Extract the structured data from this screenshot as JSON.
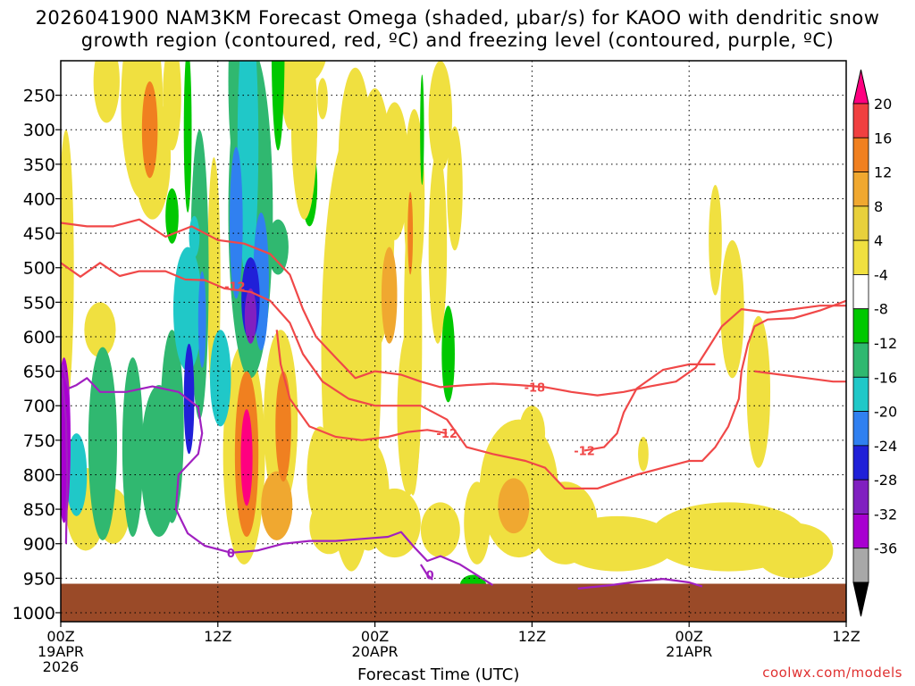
{
  "chart_data": {
    "type": "heatmap",
    "title_line1": "2026041900 NAM3KM Forecast Omega (shaded, μbar/s) for KAOO with dendritic snow",
    "title_line2": "growth region (contoured, red, ºC) and freezing level (contoured, purple, ºC)",
    "xlabel": "Forecast Time (UTC)",
    "credit": "coolwx.com/models",
    "x_ticks": [
      {
        "hour": 0,
        "lines": [
          "00Z",
          "19APR",
          "2026"
        ]
      },
      {
        "hour": 12,
        "lines": [
          "12Z"
        ]
      },
      {
        "hour": 24,
        "lines": [
          "00Z",
          "20APR"
        ]
      },
      {
        "hour": 36,
        "lines": [
          "12Z"
        ]
      },
      {
        "hour": 48,
        "lines": [
          "00Z",
          "21APR"
        ]
      },
      {
        "hour": 60,
        "lines": [
          "12Z"
        ]
      }
    ],
    "xlim_hours": [
      0,
      60
    ],
    "y_ticks": [
      250,
      300,
      350,
      400,
      450,
      500,
      550,
      600,
      650,
      700,
      750,
      800,
      850,
      900,
      950,
      1000
    ],
    "ylim_hpa": [
      200,
      1013
    ],
    "surface_pressure_hpa": 958,
    "surface_color": "#9a4a28",
    "colorbar": {
      "labels": [
        "20",
        "16",
        "12",
        "8",
        "4",
        "-4",
        "-8",
        "-12",
        "-16",
        "-20",
        "-24",
        "-28",
        "-32",
        "-36"
      ],
      "colors": [
        "#ff0080",
        "#f04040",
        "#f08020",
        "#f0a830",
        "#e8d03c",
        "#f0e040",
        "#ffffff",
        "#00c800",
        "#30b870",
        "#20c8c8",
        "#3080f0",
        "#2020d8",
        "#8020c0",
        "#a800d0",
        "#a8a8a8",
        "#000000"
      ]
    },
    "omega_blobs": [
      {
        "h": 0.4,
        "p": 500,
        "rx": 0.6,
        "ry": 200,
        "v": 6
      },
      {
        "h": 0.25,
        "p": 750,
        "rx": 0.5,
        "ry": 120,
        "v": -30
      },
      {
        "h": 1.2,
        "p": 800,
        "rx": 0.8,
        "ry": 60,
        "v": -12
      },
      {
        "h": 3.5,
        "p": 230,
        "rx": 1.0,
        "ry": 60,
        "v": 6
      },
      {
        "h": 6.2,
        "p": 260,
        "rx": 1.6,
        "ry": 140,
        "v": 6
      },
      {
        "h": 6.8,
        "p": 300,
        "rx": 0.6,
        "ry": 70,
        "v": 12
      },
      {
        "h": 7.0,
        "p": 340,
        "rx": 1.4,
        "ry": 90,
        "v": 6
      },
      {
        "h": 8.5,
        "p": 250,
        "rx": 0.7,
        "ry": 80,
        "v": 6
      },
      {
        "h": 8.5,
        "p": 425,
        "rx": 0.5,
        "ry": 40,
        "v": -6
      },
      {
        "h": 9.7,
        "p": 300,
        "rx": 0.3,
        "ry": 120,
        "v": -6
      },
      {
        "h": 10.2,
        "p": 455,
        "rx": 0.4,
        "ry": 30,
        "v": -14
      },
      {
        "h": 10.6,
        "p": 510,
        "rx": 0.7,
        "ry": 210,
        "v": -10
      },
      {
        "h": 10.8,
        "p": 575,
        "rx": 0.3,
        "ry": 70,
        "v": -18
      },
      {
        "h": 9.7,
        "p": 560,
        "rx": 1.1,
        "ry": 90,
        "v": -12
      },
      {
        "h": 9.8,
        "p": 690,
        "rx": 0.4,
        "ry": 80,
        "v": -22
      },
      {
        "h": 8.5,
        "p": 730,
        "rx": 0.9,
        "ry": 140,
        "v": -10
      },
      {
        "h": 7.5,
        "p": 780,
        "rx": 1.4,
        "ry": 110,
        "v": -8
      },
      {
        "h": 5.5,
        "p": 760,
        "rx": 0.8,
        "ry": 130,
        "v": -9
      },
      {
        "h": 11.7,
        "p": 520,
        "rx": 0.5,
        "ry": 180,
        "v": 6
      },
      {
        "h": 12.2,
        "p": 660,
        "rx": 0.8,
        "ry": 70,
        "v": -12
      },
      {
        "h": 3.0,
        "p": 590,
        "rx": 1.2,
        "ry": 40,
        "v": 6
      },
      {
        "h": 3.2,
        "p": 755,
        "rx": 1.1,
        "ry": 140,
        "v": -9
      },
      {
        "h": 1.9,
        "p": 850,
        "rx": 1.5,
        "ry": 60,
        "v": 5
      },
      {
        "h": 4.0,
        "p": 860,
        "rx": 1.2,
        "ry": 40,
        "v": 5
      },
      {
        "h": 13.8,
        "p": 230,
        "rx": 1.0,
        "ry": 160,
        "v": -8
      },
      {
        "h": 14.5,
        "p": 420,
        "rx": 1.7,
        "ry": 240,
        "v": -9
      },
      {
        "h": 14.3,
        "p": 320,
        "rx": 0.8,
        "ry": 200,
        "v": -14
      },
      {
        "h": 13.4,
        "p": 435,
        "rx": 0.5,
        "ry": 110,
        "v": -16
      },
      {
        "h": 15.3,
        "p": 520,
        "rx": 0.6,
        "ry": 100,
        "v": -16
      },
      {
        "h": 14.5,
        "p": 545,
        "rx": 0.7,
        "ry": 60,
        "v": -22
      },
      {
        "h": 14.5,
        "p": 570,
        "rx": 0.45,
        "ry": 40,
        "v": -27
      },
      {
        "h": 16.6,
        "p": 180,
        "rx": 0.5,
        "ry": 150,
        "v": -7
      },
      {
        "h": 17.5,
        "p": 160,
        "rx": 0.9,
        "ry": 140,
        "v": 6
      },
      {
        "h": 19.0,
        "p": 150,
        "rx": 1.6,
        "ry": 80,
        "v": 6
      },
      {
        "h": 20.0,
        "p": 255,
        "rx": 0.4,
        "ry": 30,
        "v": 6
      },
      {
        "h": 19.0,
        "p": 380,
        "rx": 0.6,
        "ry": 60,
        "v": -6
      },
      {
        "h": 18.6,
        "p": 290,
        "rx": 1.0,
        "ry": 140,
        "v": 6
      },
      {
        "h": 16.6,
        "p": 470,
        "rx": 0.8,
        "ry": 40,
        "v": -8
      },
      {
        "h": 14.0,
        "p": 770,
        "rx": 1.6,
        "ry": 160,
        "v": 6
      },
      {
        "h": 14.2,
        "p": 770,
        "rx": 0.9,
        "ry": 120,
        "v": 14
      },
      {
        "h": 14.2,
        "p": 775,
        "rx": 0.45,
        "ry": 70,
        "v": 22
      },
      {
        "h": 16.8,
        "p": 720,
        "rx": 1.3,
        "ry": 130,
        "v": 6
      },
      {
        "h": 17.0,
        "p": 730,
        "rx": 0.6,
        "ry": 80,
        "v": 12
      },
      {
        "h": 16.5,
        "p": 845,
        "rx": 1.2,
        "ry": 50,
        "v": 8
      },
      {
        "h": 19.8,
        "p": 800,
        "rx": 1.0,
        "ry": 70,
        "v": 6
      },
      {
        "h": 20.5,
        "p": 595,
        "rx": 0.6,
        "ry": 40,
        "v": 6
      },
      {
        "h": 22.2,
        "p": 620,
        "rx": 2.3,
        "ry": 320,
        "v": 6
      },
      {
        "h": 24.0,
        "p": 430,
        "rx": 1.5,
        "ry": 190,
        "v": 6
      },
      {
        "h": 22.5,
        "p": 350,
        "rx": 1.3,
        "ry": 140,
        "v": 6
      },
      {
        "h": 25.5,
        "p": 360,
        "rx": 1.1,
        "ry": 100,
        "v": 6
      },
      {
        "h": 26.9,
        "p": 600,
        "rx": 0.7,
        "ry": 230,
        "v": 6
      },
      {
        "h": 27.0,
        "p": 400,
        "rx": 0.8,
        "ry": 130,
        "v": 6
      },
      {
        "h": 26.7,
        "p": 450,
        "rx": 0.2,
        "ry": 60,
        "v": 12
      },
      {
        "h": 25.1,
        "p": 540,
        "rx": 0.6,
        "ry": 70,
        "v": 9
      },
      {
        "h": 26.6,
        "p": 710,
        "rx": 0.9,
        "ry": 120,
        "v": 6
      },
      {
        "h": 29.0,
        "p": 280,
        "rx": 0.9,
        "ry": 80,
        "v": 6
      },
      {
        "h": 28.8,
        "p": 470,
        "rx": 0.7,
        "ry": 140,
        "v": 6
      },
      {
        "h": 30.1,
        "p": 385,
        "rx": 0.6,
        "ry": 90,
        "v": 6
      },
      {
        "h": 27.6,
        "p": 300,
        "rx": 0.15,
        "ry": 80,
        "v": -6
      },
      {
        "h": 29.6,
        "p": 625,
        "rx": 0.5,
        "ry": 70,
        "v": -7
      },
      {
        "h": 23.5,
        "p": 830,
        "rx": 1.6,
        "ry": 80,
        "v": 6
      },
      {
        "h": 20.5,
        "p": 875,
        "rx": 1.5,
        "ry": 40,
        "v": 5
      },
      {
        "h": 25.5,
        "p": 870,
        "rx": 2.0,
        "ry": 50,
        "v": 5
      },
      {
        "h": 29.0,
        "p": 880,
        "rx": 1.5,
        "ry": 40,
        "v": 5
      },
      {
        "h": 35.0,
        "p": 820,
        "rx": 3.0,
        "ry": 100,
        "v": 6
      },
      {
        "h": 34.6,
        "p": 845,
        "rx": 1.2,
        "ry": 40,
        "v": 10
      },
      {
        "h": 36.0,
        "p": 740,
        "rx": 1.0,
        "ry": 40,
        "v": 5
      },
      {
        "h": 38.5,
        "p": 870,
        "rx": 2.5,
        "ry": 60,
        "v": 5
      },
      {
        "h": 42.5,
        "p": 900,
        "rx": 4.5,
        "ry": 40,
        "v": 5
      },
      {
        "h": 31.8,
        "p": 870,
        "rx": 1.0,
        "ry": 60,
        "v": 5
      },
      {
        "h": 44.5,
        "p": 770,
        "rx": 0.4,
        "ry": 25,
        "v": 5
      },
      {
        "h": 50.0,
        "p": 460,
        "rx": 0.5,
        "ry": 80,
        "v": 6
      },
      {
        "h": 51.3,
        "p": 560,
        "rx": 0.9,
        "ry": 100,
        "v": 6
      },
      {
        "h": 53.3,
        "p": 680,
        "rx": 0.9,
        "ry": 110,
        "v": 6
      },
      {
        "h": 51.0,
        "p": 890,
        "rx": 6.0,
        "ry": 50,
        "v": 5
      },
      {
        "h": 56.0,
        "p": 910,
        "rx": 3.0,
        "ry": 40,
        "v": 5
      },
      {
        "h": 31.5,
        "p": 960,
        "rx": 1.0,
        "ry": 15,
        "v": -6
      }
    ],
    "contours": [
      {
        "color": "#f04848",
        "label": "-12",
        "label_at": [
          13.3,
          527
        ],
        "points": [
          [
            0,
            493
          ],
          [
            1.5,
            513
          ],
          [
            3,
            493
          ],
          [
            4.5,
            512
          ],
          [
            6,
            505
          ],
          [
            8,
            505
          ],
          [
            9.5,
            517
          ],
          [
            11,
            518
          ],
          [
            12.5,
            530
          ],
          [
            14.5,
            535
          ],
          [
            16,
            548
          ],
          [
            17.5,
            580
          ],
          [
            18.5,
            625
          ],
          [
            20,
            665
          ],
          [
            22,
            690
          ],
          [
            24,
            700
          ],
          [
            25.5,
            700
          ],
          [
            27.5,
            700
          ],
          [
            29.5,
            720
          ],
          [
            31,
            760
          ],
          [
            33,
            770
          ],
          [
            35.5,
            780
          ],
          [
            37,
            790
          ],
          [
            38.5,
            820
          ],
          [
            41,
            820
          ],
          [
            44,
            800
          ],
          [
            46,
            790
          ],
          [
            48,
            780
          ],
          [
            49,
            780
          ],
          [
            50,
            760
          ],
          [
            51,
            730
          ],
          [
            51.8,
            690
          ],
          [
            52,
            650
          ],
          [
            52.5,
            610
          ],
          [
            53,
            585
          ],
          [
            54,
            575
          ],
          [
            56,
            573
          ],
          [
            58,
            562
          ],
          [
            60,
            548
          ]
        ]
      },
      {
        "color": "#f04848",
        "label": "-18",
        "label_at": [
          36.2,
          673
        ],
        "points": [
          [
            0,
            435
          ],
          [
            2,
            440
          ],
          [
            4,
            440
          ],
          [
            6,
            430
          ],
          [
            8,
            455
          ],
          [
            10,
            440
          ],
          [
            12,
            460
          ],
          [
            14,
            465
          ],
          [
            16,
            480
          ],
          [
            17.5,
            510
          ],
          [
            18.5,
            560
          ],
          [
            19.5,
            600
          ],
          [
            21,
            630
          ],
          [
            22.5,
            660
          ],
          [
            24,
            650
          ],
          [
            26,
            655
          ],
          [
            27.5,
            665
          ],
          [
            29,
            673
          ],
          [
            31,
            670
          ],
          [
            33,
            668
          ],
          [
            35,
            670
          ],
          [
            37,
            673
          ],
          [
            39,
            680
          ],
          [
            41,
            685
          ],
          [
            43,
            680
          ],
          [
            45,
            672
          ],
          [
            47,
            665
          ],
          [
            48.5,
            645
          ],
          [
            49.5,
            615
          ],
          [
            50.5,
            585
          ],
          [
            52,
            560
          ],
          [
            54,
            565
          ],
          [
            56,
            560
          ],
          [
            58,
            555
          ],
          [
            59,
            555
          ],
          [
            60,
            555
          ]
        ]
      },
      {
        "color": "#f04848",
        "label": "-12",
        "label_at": [
          29.5,
          740
        ],
        "points": [
          [
            16.5,
            590
          ],
          [
            16.8,
            640
          ],
          [
            17.5,
            690
          ],
          [
            19,
            730
          ],
          [
            21,
            745
          ],
          [
            23,
            750
          ],
          [
            25,
            745
          ],
          [
            26.5,
            738
          ],
          [
            28,
            735
          ],
          [
            29.5,
            740
          ]
        ]
      },
      {
        "color": "#f04848",
        "label": "-12",
        "label_at": [
          40,
          765
        ],
        "points": [
          [
            40,
            765
          ],
          [
            41.5,
            760
          ],
          [
            42.5,
            740
          ],
          [
            43,
            710
          ],
          [
            44,
            675
          ],
          [
            46,
            648
          ],
          [
            48,
            640
          ],
          [
            50,
            640
          ]
        ]
      },
      {
        "color": "#f04848",
        "label": "",
        "label_at": null,
        "points": [
          [
            53,
            650
          ],
          [
            55,
            655
          ],
          [
            57,
            660
          ],
          [
            59,
            665
          ],
          [
            60,
            665
          ]
        ]
      },
      {
        "color": "#a020c0",
        "label": "0",
        "label_at": [
          13.0,
          913
        ],
        "points": [
          [
            0.1,
            640
          ],
          [
            0.6,
            675
          ],
          [
            1.2,
            670
          ],
          [
            2,
            660
          ],
          [
            3,
            680
          ],
          [
            5,
            680
          ],
          [
            7,
            672
          ],
          [
            9,
            680
          ],
          [
            10.5,
            702
          ],
          [
            10.8,
            740
          ],
          [
            10.5,
            770
          ],
          [
            9,
            800
          ],
          [
            8.8,
            850
          ],
          [
            9.7,
            885
          ],
          [
            11,
            903
          ],
          [
            13,
            913
          ],
          [
            15,
            910
          ],
          [
            17,
            900
          ],
          [
            19,
            896
          ],
          [
            21,
            896
          ],
          [
            23,
            893
          ],
          [
            25,
            890
          ],
          [
            26,
            883
          ],
          [
            27,
            905
          ],
          [
            28,
            925
          ],
          [
            29,
            918
          ],
          [
            30.5,
            930
          ],
          [
            31.5,
            942
          ],
          [
            33,
            960
          ]
        ]
      },
      {
        "color": "#a020c0",
        "label": "0",
        "label_at": [
          28.2,
          945
        ],
        "points": [
          [
            27.5,
            930
          ],
          [
            28,
            945
          ],
          [
            28.4,
            952
          ]
        ]
      },
      {
        "color": "#a020c0",
        "label": "",
        "label_at": null,
        "points": [
          [
            39.5,
            965
          ],
          [
            42,
            960
          ],
          [
            44,
            955
          ],
          [
            46,
            951
          ],
          [
            48,
            956
          ],
          [
            49,
            962
          ]
        ]
      },
      {
        "color": "#a020c0",
        "label": "",
        "label_at": null,
        "points": [
          [
            0.1,
            660
          ],
          [
            0.4,
            720
          ],
          [
            0.5,
            800
          ],
          [
            0.4,
            900
          ]
        ]
      }
    ]
  }
}
